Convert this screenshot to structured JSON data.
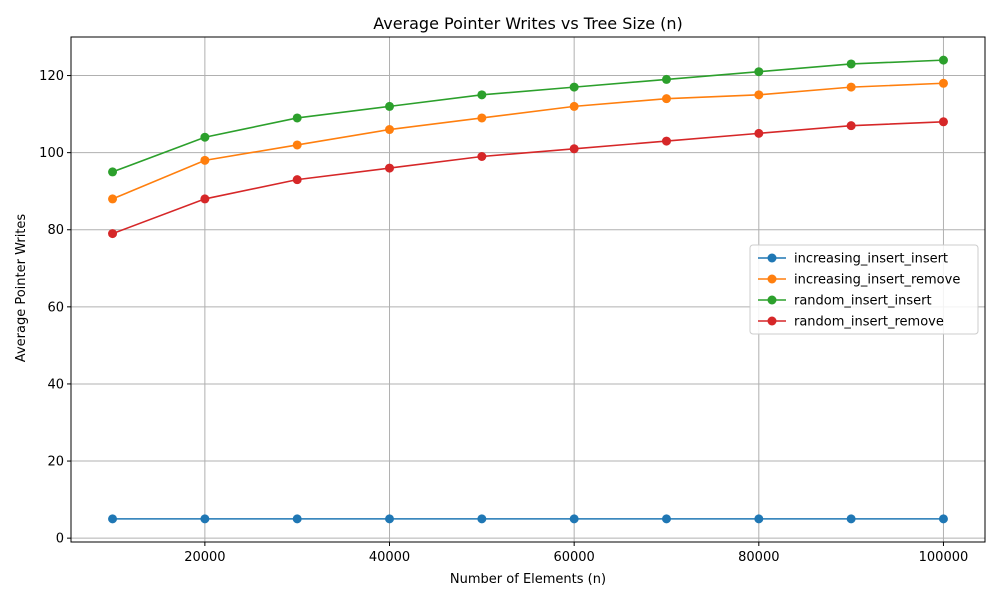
{
  "chart_data": {
    "type": "line",
    "title": "Average Pointer Writes vs Tree Size (n)",
    "xlabel": "Number of Elements (n)",
    "ylabel": "Average Pointer Writes",
    "x": [
      10000,
      20000,
      30000,
      40000,
      50000,
      60000,
      70000,
      80000,
      90000,
      100000
    ],
    "xlim": [
      5500,
      104500
    ],
    "ylim": [
      -1,
      130
    ],
    "xticks": [
      20000,
      40000,
      60000,
      80000,
      100000
    ],
    "yticks": [
      0,
      20,
      40,
      60,
      80,
      100,
      120
    ],
    "grid": true,
    "legend_position": "center-right",
    "series": [
      {
        "name": "increasing_insert_insert",
        "color": "#1f77b4",
        "values": [
          5,
          5,
          5,
          5,
          5,
          5,
          5,
          5,
          5,
          5
        ]
      },
      {
        "name": "increasing_insert_remove",
        "color": "#ff7f0e",
        "values": [
          88,
          98,
          102,
          106,
          109,
          112,
          114,
          115,
          117,
          118
        ]
      },
      {
        "name": "random_insert_insert",
        "color": "#2ca02c",
        "values": [
          95,
          104,
          109,
          112,
          115,
          117,
          119,
          121,
          123,
          124
        ]
      },
      {
        "name": "random_insert_remove",
        "color": "#d62728",
        "values": [
          79,
          88,
          93,
          96,
          99,
          101,
          103,
          105,
          107,
          108
        ]
      }
    ]
  }
}
